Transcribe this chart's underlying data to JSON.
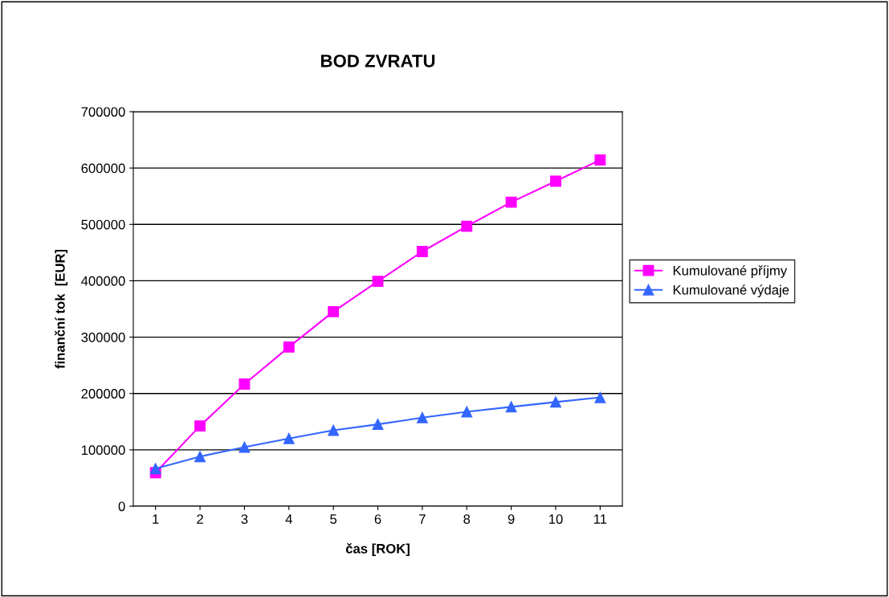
{
  "chart_data": {
    "type": "line",
    "title": "BOD ZVRATU",
    "xlabel": "čas [ROK]",
    "ylabel": "finanční tok  [EUR]",
    "categories": [
      "1",
      "2",
      "3",
      "4",
      "5",
      "6",
      "7",
      "8",
      "9",
      "10",
      "11"
    ],
    "series": [
      {
        "name": "Kumulované příjmy",
        "color": "#ff00ff",
        "marker": "square",
        "values": [
          59500,
          142400,
          216700,
          282400,
          345200,
          399000,
          451900,
          496700,
          539500,
          576700,
          614300
        ]
      },
      {
        "name": "Kumulované výdaje",
        "color": "#3366ff",
        "marker": "triangle",
        "values": [
          66700,
          88100,
          104800,
          120000,
          134800,
          145200,
          157100,
          167600,
          176200,
          184800,
          192900
        ]
      }
    ],
    "ylim": [
      0,
      700000
    ],
    "yticks": [
      0,
      100000,
      200000,
      300000,
      400000,
      500000,
      600000,
      700000
    ],
    "grid": "y",
    "legend": "right",
    "line_style": "solid"
  }
}
